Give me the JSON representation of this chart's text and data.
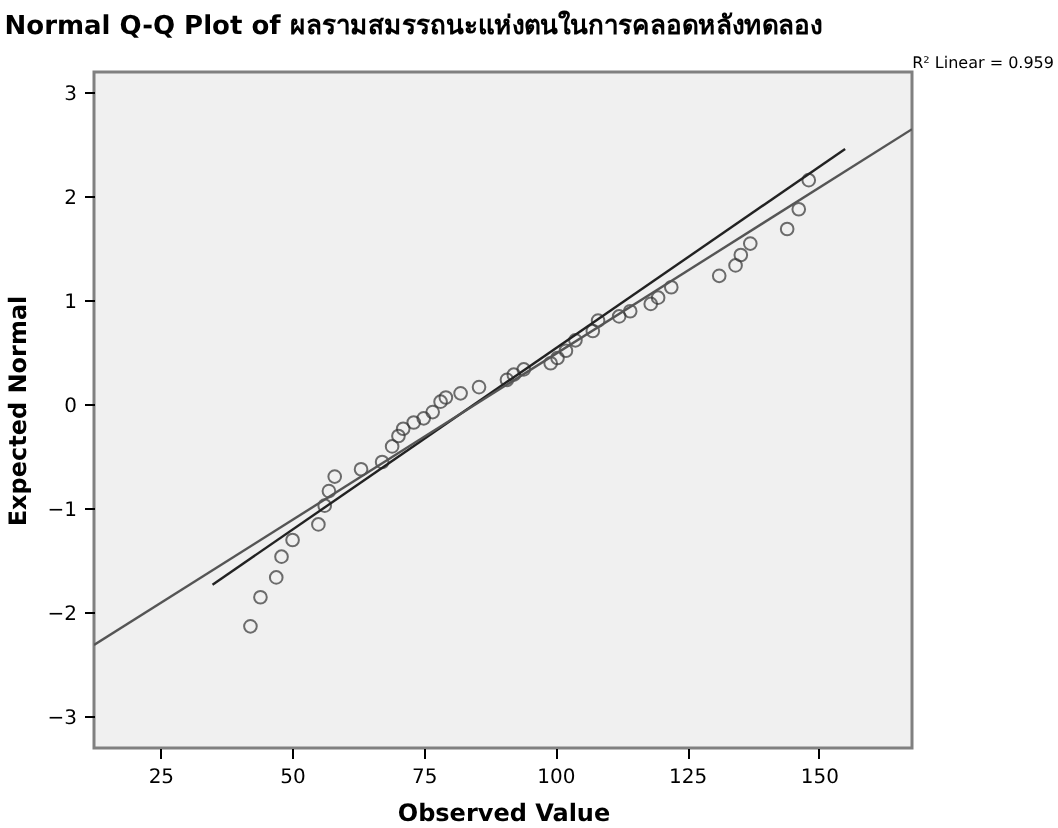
{
  "chart_data": {
    "type": "scatter",
    "title": "Normal Q-Q Plot of ผลรามสมรรถนะแห่งตนในการคลอดหลังทดลอง",
    "xlabel": "Observed Value",
    "ylabel": "Expected Normal",
    "annotations": [
      "R² Linear = 0.959"
    ],
    "xlim": [
      12.4,
      167.7
    ],
    "ylim": [
      -3.3,
      3.2
    ],
    "xticks": [
      25,
      50,
      75,
      100,
      125,
      150
    ],
    "yticks": [
      -3,
      -2,
      -1,
      0,
      1,
      2,
      3
    ],
    "grid": false,
    "series": [
      {
        "marker": "circle",
        "color": "#333333",
        "x": [
          42.1,
          44.0,
          47.0,
          48.0,
          50.1,
          55.0,
          56.2,
          57.0,
          58.1,
          63.1,
          67.1,
          69.0,
          70.2,
          71.1,
          73.1,
          75.0,
          76.7,
          78.2,
          79.2,
          82.0,
          85.5,
          90.8,
          92.1,
          94.0,
          99.1,
          100.4,
          102.0,
          103.8,
          107.1,
          108.1,
          112.1,
          114.2,
          118.1,
          119.5,
          122.0,
          131.1,
          134.2,
          135.2,
          137.0,
          144.0,
          146.2,
          148.1
        ],
        "values": [
          -2.13,
          -1.85,
          -1.66,
          -1.46,
          -1.3,
          -1.15,
          -0.97,
          -0.83,
          -0.69,
          -0.62,
          -0.55,
          -0.4,
          -0.3,
          -0.23,
          -0.17,
          -0.13,
          -0.07,
          0.03,
          0.07,
          0.11,
          0.17,
          0.24,
          0.29,
          0.34,
          0.4,
          0.45,
          0.52,
          0.62,
          0.71,
          0.81,
          0.85,
          0.9,
          0.97,
          1.03,
          1.13,
          1.24,
          1.34,
          1.44,
          1.55,
          1.69,
          1.88,
          2.16
        ]
      },
      {
        "type": "line",
        "color": "#222222",
        "x": [
          34.9,
          155.0
        ],
        "values": [
          -1.73,
          2.46
        ]
      },
      {
        "type": "line",
        "color": "#555555",
        "x": [
          12.4,
          167.7
        ],
        "values": [
          -2.31,
          2.65
        ]
      }
    ]
  }
}
